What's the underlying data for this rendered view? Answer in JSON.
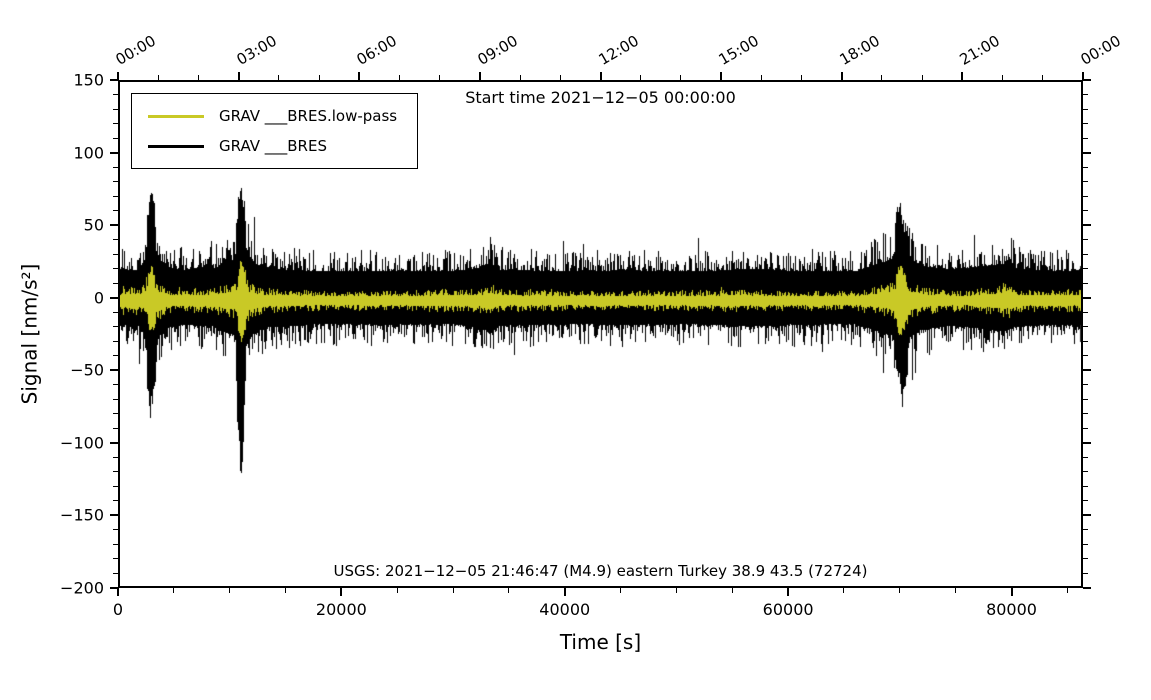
{
  "chart_data": {
    "type": "line",
    "title": "Start time 2021−12−05 00:00:00",
    "annotation": "USGS: 2021−12−05 21:46:47 (M4.9) eastern Turkey 38.9 43.5 (72724)",
    "xlabel": "Time [s]",
    "ylabel": "Signal [nm/s²]",
    "xlim": [
      0,
      86400
    ],
    "ylim": [
      -200,
      150
    ],
    "grid": false,
    "legend_position": "top-left",
    "legend": [
      {
        "label": "GRAV ___BRES.low-pass",
        "color": "#c9c926"
      },
      {
        "label": "GRAV ___BRES",
        "color": "#000000"
      }
    ],
    "axes": {
      "bottom": {
        "values": [
          0,
          20000,
          40000,
          60000,
          80000
        ],
        "labels": [
          "0",
          "20000",
          "40000",
          "60000",
          "80000"
        ],
        "minor_step": 5000
      },
      "top": {
        "values": [
          0,
          10800,
          21600,
          32400,
          43200,
          54000,
          64800,
          75600,
          86400
        ],
        "labels": [
          "00:00",
          "03:00",
          "06:00",
          "09:00",
          "12:00",
          "15:00",
          "18:00",
          "21:00",
          "00:00"
        ],
        "minor_step": 3600
      },
      "left": {
        "values": [
          -200,
          -150,
          -100,
          -50,
          0,
          50,
          100,
          150
        ],
        "labels": [
          "−200",
          "−150",
          "−100",
          "−50",
          "0",
          "50",
          "100",
          "150"
        ],
        "minor_step": 10
      }
    },
    "series": [
      {
        "name": "GRAV ___BRES",
        "color": "#000000",
        "style": "noise-band",
        "center": 0,
        "envelope": [
          [
            0,
            36,
            -36
          ],
          [
            1800,
            34,
            -34
          ],
          [
            2400,
            48,
            -48
          ],
          [
            2950,
            85,
            -88
          ],
          [
            3500,
            52,
            -52
          ],
          [
            4300,
            38,
            -38
          ],
          [
            6000,
            34,
            -34
          ],
          [
            7900,
            40,
            -36
          ],
          [
            8150,
            50,
            -38
          ],
          [
            8500,
            36,
            -36
          ],
          [
            10500,
            48,
            -48
          ],
          [
            11000,
            97,
            -145
          ],
          [
            11500,
            58,
            -58
          ],
          [
            12300,
            42,
            -42
          ],
          [
            14000,
            36,
            -36
          ],
          [
            18000,
            33,
            -33
          ],
          [
            24000,
            34,
            -34
          ],
          [
            30000,
            33,
            -33
          ],
          [
            32700,
            38,
            -38
          ],
          [
            33200,
            44,
            -44
          ],
          [
            34200,
            35,
            -35
          ],
          [
            40000,
            33,
            -33
          ],
          [
            46000,
            34,
            -34
          ],
          [
            52000,
            33,
            -33
          ],
          [
            57000,
            36,
            -36
          ],
          [
            60000,
            34,
            -34
          ],
          [
            66000,
            33,
            -33
          ],
          [
            69300,
            48,
            -48
          ],
          [
            69950,
            74,
            -62
          ],
          [
            70250,
            62,
            -86
          ],
          [
            70900,
            50,
            -50
          ],
          [
            72000,
            40,
            -40
          ],
          [
            74500,
            35,
            -35
          ],
          [
            79200,
            42,
            -42
          ],
          [
            79700,
            46,
            -40
          ],
          [
            80600,
            36,
            -36
          ],
          [
            83500,
            34,
            -34
          ],
          [
            86400,
            34,
            -34
          ]
        ]
      },
      {
        "name": "GRAV ___BRES.low-pass",
        "color": "#c9c926",
        "style": "noise-band",
        "center": -2,
        "envelope": [
          [
            0,
            8,
            -8
          ],
          [
            2300,
            11,
            -11
          ],
          [
            2950,
            26,
            -26
          ],
          [
            3700,
            13,
            -13
          ],
          [
            4800,
            8,
            -8
          ],
          [
            8100,
            9,
            -9
          ],
          [
            10500,
            13,
            -13
          ],
          [
            11050,
            30,
            -30
          ],
          [
            11800,
            13,
            -13
          ],
          [
            13000,
            9,
            -9
          ],
          [
            18000,
            7,
            -7
          ],
          [
            26000,
            7,
            -7
          ],
          [
            32800,
            9,
            -9
          ],
          [
            33300,
            12,
            -12
          ],
          [
            34300,
            8,
            -8
          ],
          [
            40000,
            7,
            -7
          ],
          [
            48000,
            7,
            -7
          ],
          [
            56000,
            8,
            -8
          ],
          [
            60000,
            7,
            -7
          ],
          [
            66000,
            7,
            -7
          ],
          [
            69400,
            13,
            -13
          ],
          [
            70050,
            27,
            -27
          ],
          [
            70900,
            14,
            -14
          ],
          [
            72200,
            9,
            -9
          ],
          [
            76000,
            7,
            -7
          ],
          [
            79300,
            11,
            -11
          ],
          [
            79900,
            12,
            -12
          ],
          [
            80800,
            8,
            -8
          ],
          [
            86400,
            8,
            -8
          ]
        ]
      }
    ],
    "events": [
      {
        "t": 2950,
        "peak_pos": 85,
        "peak_neg": -88
      },
      {
        "t": 11000,
        "peak_pos": 97,
        "peak_neg": -145
      },
      {
        "t": 70000,
        "peak_pos": 74,
        "peak_neg": -86
      },
      {
        "t": 79600,
        "peak_pos": 46,
        "peak_neg": -40
      }
    ]
  }
}
